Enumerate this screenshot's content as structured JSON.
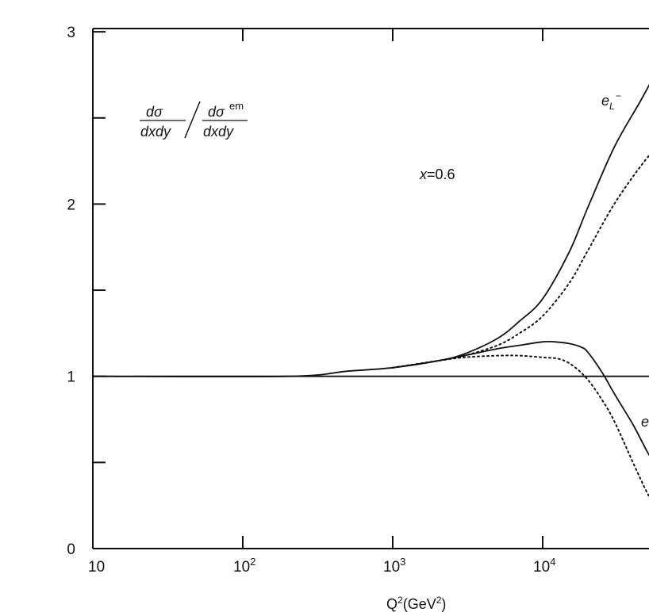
{
  "chart_data": {
    "type": "line",
    "x_scale": "log",
    "xlim": [
      10,
      60000
    ],
    "ylim": [
      0,
      3
    ],
    "grid": false,
    "xlabel": {
      "base": "Q",
      "sup1": "2",
      "mid": "(GeV",
      "sup2": "2",
      "end": ")"
    },
    "ylabel": {
      "num1": "dσ",
      "den1": "dxdy",
      "num2": "dσ",
      "num2_sup": "em",
      "den2": "dxdy"
    },
    "x_ticks": [
      {
        "value": 10,
        "base": "10",
        "exp": ""
      },
      {
        "value": 100,
        "base": "10",
        "exp": "2"
      },
      {
        "value": 1000,
        "base": "10",
        "exp": "3"
      },
      {
        "value": 10000,
        "base": "10",
        "exp": "4"
      }
    ],
    "y_ticks": [
      {
        "value": 0,
        "label": "0"
      },
      {
        "value": 1,
        "label": "1"
      },
      {
        "value": 2,
        "label": "2"
      },
      {
        "value": 3,
        "label": "3"
      }
    ],
    "y_minor_ticks": [
      0.5,
      1.5,
      2.5
    ],
    "annotation": {
      "x_label": "x",
      "eq": "=0.6"
    },
    "series": [
      {
        "name": "",
        "style": "solid",
        "x": [
          10,
          200,
          500,
          1000,
          2000,
          3000,
          5000,
          7000,
          10000,
          15000,
          20000,
          30000,
          45000,
          60000
        ],
        "y": [
          1.0,
          1.0,
          1.03,
          1.05,
          1.09,
          1.13,
          1.22,
          1.32,
          1.45,
          1.72,
          1.98,
          2.33,
          2.6,
          2.8
        ]
      },
      {
        "name": "",
        "style": "dotted",
        "x": [
          1000,
          2000,
          3000,
          5000,
          7000,
          10000,
          15000,
          20000,
          30000,
          45000,
          60000
        ],
        "y": [
          1.05,
          1.09,
          1.12,
          1.18,
          1.25,
          1.35,
          1.54,
          1.73,
          2.0,
          2.22,
          2.35
        ]
      },
      {
        "name": "",
        "style": "solid",
        "x": [
          1000,
          2000,
          3000,
          5000,
          7000,
          10000,
          12000,
          15000,
          18000,
          20000,
          25000,
          30000,
          40000,
          50000,
          60000
        ],
        "y": [
          1.05,
          1.09,
          1.12,
          1.16,
          1.18,
          1.2,
          1.2,
          1.19,
          1.17,
          1.14,
          1.02,
          0.9,
          0.72,
          0.56,
          0.45
        ]
      },
      {
        "name": "",
        "style": "dotted",
        "x": [
          1000,
          2000,
          3000,
          5000,
          7000,
          10000,
          13000,
          16000,
          20000,
          25000,
          30000,
          40000,
          50000,
          60000
        ],
        "y": [
          1.05,
          1.09,
          1.11,
          1.12,
          1.12,
          1.11,
          1.1,
          1.06,
          0.98,
          0.86,
          0.74,
          0.5,
          0.32,
          0.2
        ]
      },
      {
        "name": "",
        "style": "solid",
        "x": [
          10,
          60000
        ],
        "y": [
          1.0,
          1.0
        ]
      }
    ],
    "curve_labels": [
      {
        "base": "e",
        "sub": "L",
        "sup": "−"
      },
      {
        "base": "e",
        "sub": "",
        "sup": ""
      }
    ]
  }
}
